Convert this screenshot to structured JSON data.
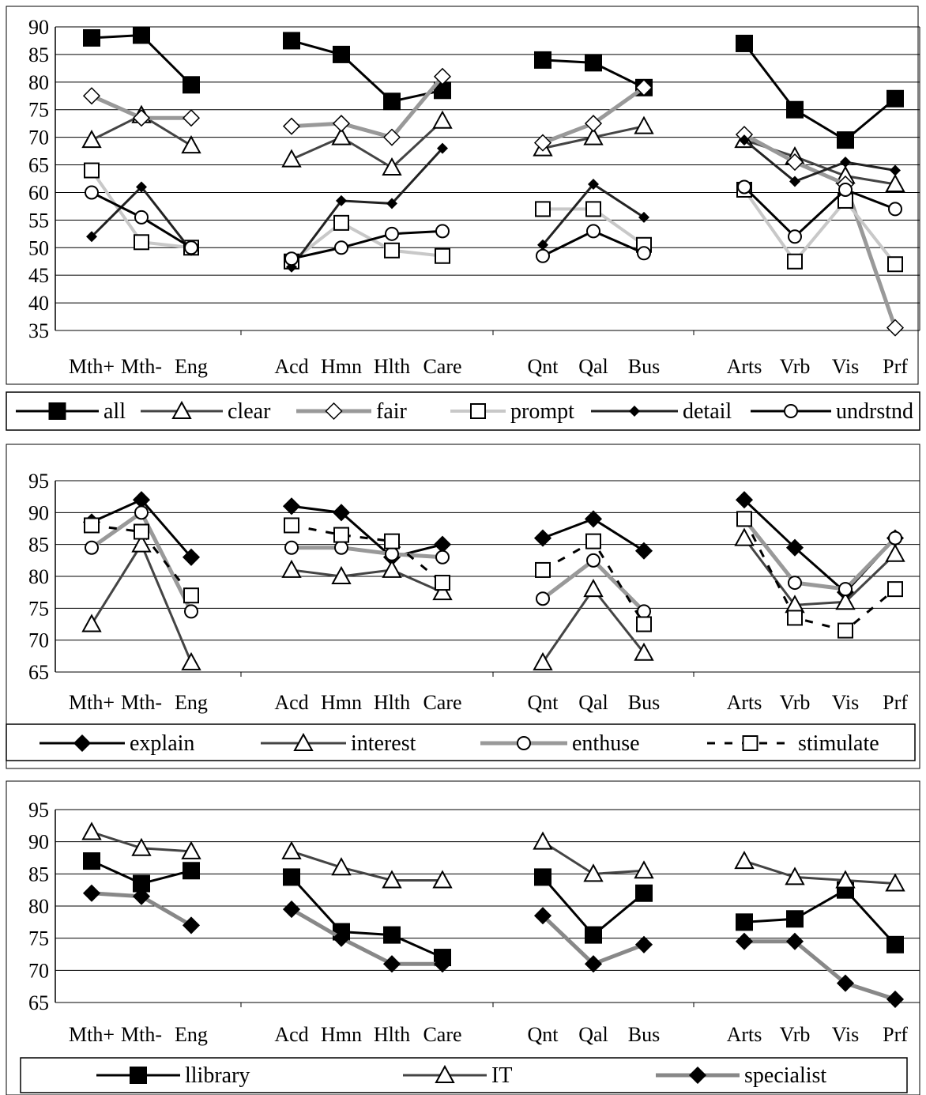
{
  "chart_data": [
    {
      "type": "line",
      "categories": [
        "Mth+",
        "Mth-",
        "Eng",
        "Acd",
        "Hmn",
        "Hlth",
        "Care",
        "Qnt",
        "Qal",
        "Bus",
        "Arts",
        "Vrb",
        "Vis",
        "Prf"
      ],
      "groups": [
        [
          0,
          1,
          2
        ],
        [
          3,
          4,
          5,
          6
        ],
        [
          7,
          8,
          9
        ],
        [
          10,
          11,
          12,
          13
        ]
      ],
      "ylim": [
        35,
        90
      ],
      "yticks": [
        35,
        40,
        45,
        50,
        55,
        60,
        65,
        70,
        75,
        80,
        85,
        90
      ],
      "grid": true,
      "legend_position": "bottom",
      "series": [
        {
          "name": "all",
          "marker": "square",
          "color": "#000000",
          "line": "solid",
          "values": [
            88,
            88.5,
            79.5,
            87.5,
            85,
            76.5,
            78.5,
            84,
            83.5,
            79,
            87,
            75,
            69.5,
            77
          ]
        },
        {
          "name": "clear",
          "marker": "triangle",
          "color": "#444444",
          "line": "solid",
          "values": [
            69.5,
            74,
            68.5,
            66,
            70,
            64.5,
            73,
            68,
            70,
            72,
            69.5,
            66.5,
            63,
            61.5
          ]
        },
        {
          "name": "fair",
          "marker": "diamond",
          "color": "#999999",
          "line": "solid",
          "values": [
            77.5,
            73.5,
            73.5,
            72,
            72.5,
            70,
            81,
            69,
            72.5,
            79,
            70.5,
            65.5,
            61.5,
            35.5
          ]
        },
        {
          "name": "prompt",
          "marker": "square-open",
          "color": "#c8c8c8",
          "line": "solid",
          "values": [
            64,
            51,
            50,
            47.5,
            54.5,
            49.5,
            48.5,
            57,
            57,
            50.5,
            60.5,
            47.5,
            58.5,
            47
          ]
        },
        {
          "name": "detail",
          "marker": "diamond-small",
          "color": "#222222",
          "line": "solid",
          "values": [
            52,
            61,
            49.5,
            46.5,
            58.5,
            58,
            68,
            50.5,
            61.5,
            55.5,
            69.5,
            62,
            65.5,
            64
          ]
        },
        {
          "name": "undrstnd",
          "marker": "circle",
          "color": "#000000",
          "line": "solid",
          "values": [
            60,
            55.5,
            50,
            48,
            50,
            52.5,
            53,
            48.5,
            53,
            49,
            61,
            52,
            60.5,
            57
          ]
        }
      ]
    },
    {
      "type": "line",
      "categories": [
        "Mth+",
        "Mth-",
        "Eng",
        "Acd",
        "Hmn",
        "Hlth",
        "Care",
        "Qnt",
        "Qal",
        "Bus",
        "Arts",
        "Vrb",
        "Vis",
        "Prf"
      ],
      "groups": [
        [
          0,
          1,
          2
        ],
        [
          3,
          4,
          5,
          6
        ],
        [
          7,
          8,
          9
        ],
        [
          10,
          11,
          12,
          13
        ]
      ],
      "ylim": [
        65,
        95
      ],
      "yticks": [
        65,
        70,
        75,
        80,
        85,
        90,
        95
      ],
      "grid": true,
      "legend_position": "bottom",
      "series": [
        {
          "name": "explain",
          "marker": "diamond",
          "color": "#000000",
          "line": "solid",
          "values": [
            88.5,
            92,
            83,
            91,
            90,
            83,
            85,
            86,
            89,
            84,
            92,
            84.5,
            77.5,
            86
          ]
        },
        {
          "name": "interest",
          "marker": "triangle",
          "color": "#444444",
          "line": "solid",
          "values": [
            72.5,
            85,
            66.5,
            81,
            80,
            81,
            77.5,
            66.5,
            78,
            68,
            86,
            75.5,
            76,
            83.5
          ]
        },
        {
          "name": "enthuse",
          "marker": "circle",
          "color": "#999999",
          "line": "solid",
          "values": [
            84.5,
            90,
            74.5,
            84.5,
            84.5,
            83.5,
            83,
            76.5,
            82.5,
            74.5,
            89,
            79,
            78,
            86
          ]
        },
        {
          "name": "stimulate",
          "marker": "square-open",
          "color": "#000000",
          "line": "dashed",
          "values": [
            88,
            87,
            77,
            88,
            86.5,
            85.5,
            79,
            81,
            85.5,
            72.5,
            89,
            73.5,
            71.5,
            78
          ]
        }
      ]
    },
    {
      "type": "line",
      "categories": [
        "Mth+",
        "Mth-",
        "Eng",
        "Acd",
        "Hmn",
        "Hlth",
        "Care",
        "Qnt",
        "Qal",
        "Bus",
        "Arts",
        "Vrb",
        "Vis",
        "Prf"
      ],
      "groups": [
        [
          0,
          1,
          2
        ],
        [
          3,
          4,
          5,
          6
        ],
        [
          7,
          8,
          9
        ],
        [
          10,
          11,
          12,
          13
        ]
      ],
      "ylim": [
        65,
        95
      ],
      "yticks": [
        65,
        70,
        75,
        80,
        85,
        90,
        95
      ],
      "grid": true,
      "legend_position": "bottom",
      "series": [
        {
          "name": "llibrary",
          "marker": "square",
          "color": "#000000",
          "line": "solid",
          "values": [
            87,
            83.5,
            85.5,
            84.5,
            76,
            75.5,
            72,
            84.5,
            75.5,
            82,
            77.5,
            78,
            82.5,
            74
          ]
        },
        {
          "name": "IT",
          "marker": "triangle",
          "color": "#444444",
          "line": "solid",
          "values": [
            91.5,
            89,
            88.5,
            88.5,
            86,
            84,
            84,
            90,
            85,
            85.5,
            87,
            84.5,
            84,
            83.5
          ]
        },
        {
          "name": "specialist",
          "marker": "diamond",
          "color": "#888888",
          "line": "solid",
          "values": [
            82,
            81.5,
            77,
            79.5,
            75,
            71,
            71,
            78.5,
            71,
            74,
            74.5,
            74.5,
            68,
            65.5
          ]
        }
      ]
    }
  ]
}
